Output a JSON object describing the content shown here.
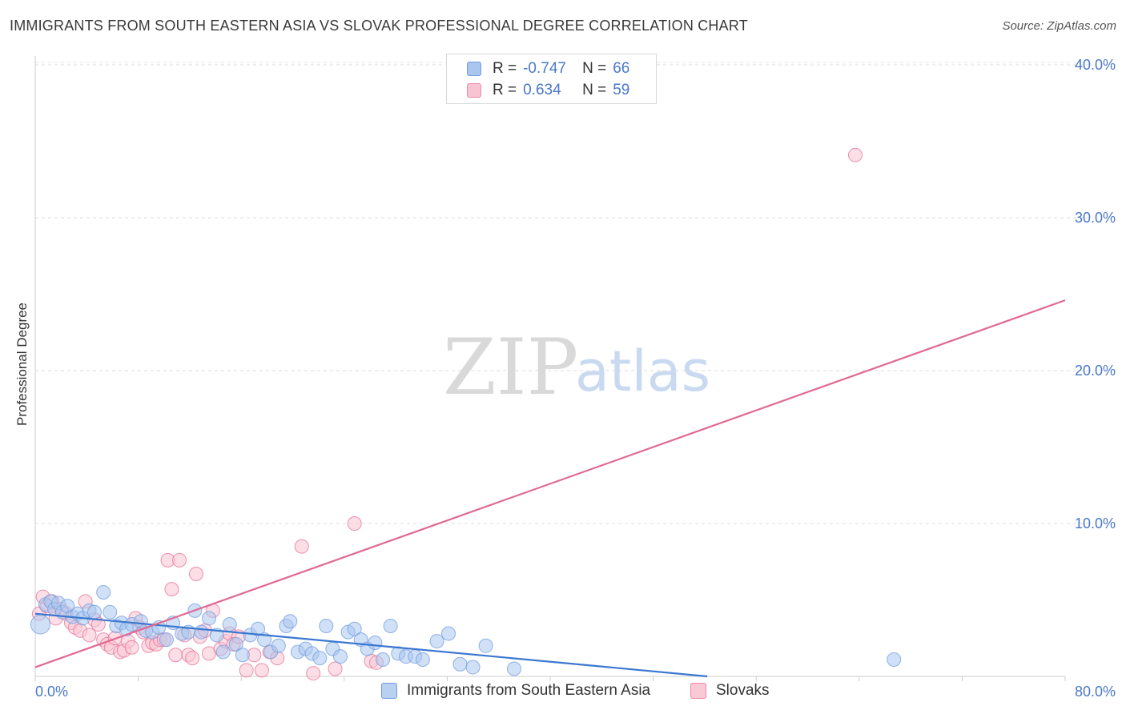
{
  "header": {
    "title": "IMMIGRANTS FROM SOUTH EASTERN ASIA VS SLOVAK PROFESSIONAL DEGREE CORRELATION CHART",
    "source": "Source: ZipAtlas.com"
  },
  "watermark": {
    "zip": "ZIP",
    "atlas": "atlas"
  },
  "legend": {
    "rows": [
      {
        "r_label": "R =",
        "r_value": "-0.747",
        "n_label": "N =",
        "n_value": "66",
        "color": "#a9c6ee",
        "border": "#6f9be0"
      },
      {
        "r_label": "R =",
        "r_value": "0.634",
        "n_label": "N =",
        "n_value": "59",
        "color": "#f9c4d2",
        "border": "#e88aa6"
      }
    ]
  },
  "bottom_legend": {
    "items": [
      {
        "label": "Immigrants from South Eastern Asia",
        "color": "#b9d1f1",
        "border": "#6f9be0"
      },
      {
        "label": "Slovaks",
        "color": "#f9c9d6",
        "border": "#e88aa6"
      }
    ]
  },
  "chart_data": {
    "type": "scatter",
    "title": "IMMIGRANTS FROM SOUTH EASTERN ASIA VS SLOVAK PROFESSIONAL DEGREE CORRELATION CHART",
    "xlabel": "",
    "ylabel": "Professional Degree",
    "xlim": [
      0,
      80
    ],
    "ylim": [
      0,
      41
    ],
    "x_tick_labels": [
      "0.0%",
      "80.0%"
    ],
    "y_ticks": [
      10,
      20,
      30,
      40
    ],
    "y_tick_labels": [
      "10.0%",
      "20.0%",
      "30.0%",
      "40.0%"
    ],
    "grid": true,
    "legend_position": "top-center",
    "series": [
      {
        "name": "Immigrants from South Eastern Asia",
        "color": "#6f9be0",
        "fill": "#a9c6ee",
        "trend": {
          "x": [
            0,
            52.2
          ],
          "y": [
            4.1,
            0
          ]
        },
        "points": [
          [
            0.4,
            3.4
          ],
          [
            0.8,
            4.7
          ],
          [
            1.2,
            4.9
          ],
          [
            1.5,
            4.4
          ],
          [
            1.8,
            4.8
          ],
          [
            2.1,
            4.2
          ],
          [
            2.5,
            4.6
          ],
          [
            2.9,
            3.9
          ],
          [
            3.3,
            4.1
          ],
          [
            3.7,
            3.8
          ],
          [
            4.2,
            4.3
          ],
          [
            4.6,
            4.2
          ],
          [
            5.3,
            5.5
          ],
          [
            5.8,
            4.2
          ],
          [
            6.3,
            3.3
          ],
          [
            6.7,
            3.5
          ],
          [
            7.1,
            3.1
          ],
          [
            7.5,
            3.4
          ],
          [
            8.2,
            3.6
          ],
          [
            8.6,
            3.0
          ],
          [
            9.1,
            2.9
          ],
          [
            9.6,
            3.2
          ],
          [
            10.2,
            2.4
          ],
          [
            10.7,
            3.5
          ],
          [
            11.4,
            2.8
          ],
          [
            11.9,
            2.9
          ],
          [
            12.4,
            4.3
          ],
          [
            12.9,
            2.9
          ],
          [
            13.5,
            3.8
          ],
          [
            14.1,
            2.7
          ],
          [
            14.6,
            1.6
          ],
          [
            15.1,
            3.4
          ],
          [
            15.6,
            2.1
          ],
          [
            16.1,
            1.4
          ],
          [
            16.7,
            2.7
          ],
          [
            17.3,
            3.1
          ],
          [
            17.8,
            2.4
          ],
          [
            18.3,
            1.6
          ],
          [
            18.9,
            2.0
          ],
          [
            19.5,
            3.3
          ],
          [
            19.8,
            3.6
          ],
          [
            20.4,
            1.6
          ],
          [
            21.0,
            1.8
          ],
          [
            21.5,
            1.5
          ],
          [
            22.1,
            1.2
          ],
          [
            22.6,
            3.3
          ],
          [
            23.1,
            1.8
          ],
          [
            23.7,
            1.3
          ],
          [
            24.3,
            2.9
          ],
          [
            24.8,
            3.1
          ],
          [
            25.3,
            2.4
          ],
          [
            25.8,
            1.8
          ],
          [
            26.4,
            2.2
          ],
          [
            27.0,
            1.1
          ],
          [
            27.6,
            3.3
          ],
          [
            28.2,
            1.5
          ],
          [
            28.8,
            1.3
          ],
          [
            29.5,
            1.3
          ],
          [
            30.1,
            1.1
          ],
          [
            31.2,
            2.3
          ],
          [
            32.1,
            2.8
          ],
          [
            33.0,
            0.8
          ],
          [
            34.0,
            0.6
          ],
          [
            35.0,
            2.0
          ],
          [
            37.2,
            0.5
          ],
          [
            66.7,
            1.1
          ]
        ]
      },
      {
        "name": "Slovaks",
        "color": "#e56f97",
        "fill": "#f9c4d2",
        "trend": {
          "x": [
            0,
            80
          ],
          "y": [
            0.6,
            24.6
          ]
        },
        "points": [
          [
            0.3,
            4.1
          ],
          [
            0.6,
            5.2
          ],
          [
            0.9,
            4.6
          ],
          [
            1.3,
            4.9
          ],
          [
            1.6,
            3.8
          ],
          [
            2.0,
            4.4
          ],
          [
            2.4,
            4.1
          ],
          [
            2.8,
            3.5
          ],
          [
            3.1,
            3.2
          ],
          [
            3.5,
            3.0
          ],
          [
            3.9,
            4.9
          ],
          [
            4.2,
            2.7
          ],
          [
            4.6,
            3.7
          ],
          [
            4.9,
            3.4
          ],
          [
            5.3,
            2.4
          ],
          [
            5.6,
            2.1
          ],
          [
            5.9,
            1.9
          ],
          [
            6.2,
            2.5
          ],
          [
            6.6,
            1.6
          ],
          [
            6.9,
            1.7
          ],
          [
            7.2,
            2.3
          ],
          [
            7.5,
            1.9
          ],
          [
            7.8,
            3.8
          ],
          [
            8.1,
            3.2
          ],
          [
            8.4,
            2.9
          ],
          [
            8.8,
            2.0
          ],
          [
            9.1,
            2.2
          ],
          [
            9.4,
            2.1
          ],
          [
            9.7,
            2.4
          ],
          [
            10.0,
            2.4
          ],
          [
            10.3,
            7.6
          ],
          [
            10.6,
            5.7
          ],
          [
            10.9,
            1.4
          ],
          [
            11.2,
            7.6
          ],
          [
            11.6,
            2.7
          ],
          [
            11.9,
            1.4
          ],
          [
            12.2,
            1.2
          ],
          [
            12.5,
            6.7
          ],
          [
            12.8,
            2.6
          ],
          [
            13.2,
            3.0
          ],
          [
            13.5,
            1.5
          ],
          [
            13.8,
            4.3
          ],
          [
            14.4,
            1.8
          ],
          [
            14.8,
            2.3
          ],
          [
            15.1,
            2.8
          ],
          [
            15.4,
            2.1
          ],
          [
            15.8,
            2.6
          ],
          [
            16.4,
            0.4
          ],
          [
            17.0,
            1.4
          ],
          [
            17.6,
            0.4
          ],
          [
            18.2,
            1.6
          ],
          [
            18.8,
            1.2
          ],
          [
            20.7,
            8.5
          ],
          [
            21.6,
            0.2
          ],
          [
            23.3,
            0.5
          ],
          [
            24.8,
            10.0
          ],
          [
            26.1,
            1.0
          ],
          [
            26.5,
            0.9
          ],
          [
            63.7,
            34.1
          ]
        ]
      }
    ]
  }
}
